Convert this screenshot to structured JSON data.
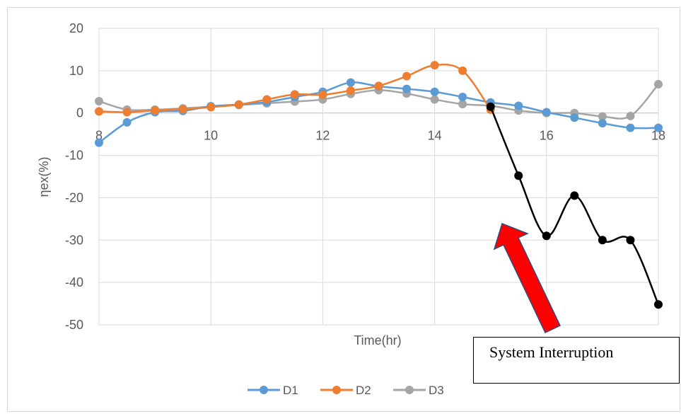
{
  "chart_data": {
    "type": "line",
    "title": "",
    "xlabel": "Time(hr)",
    "ylabel": "ηex(%)",
    "xlim": [
      8,
      18
    ],
    "ylim": [
      -50,
      20
    ],
    "x_ticks": [
      8,
      10,
      12,
      14,
      16,
      18
    ],
    "y_ticks": [
      20,
      10,
      0,
      -10,
      -20,
      -30,
      -40,
      -50
    ],
    "grid": true,
    "legend": "bottom",
    "series": [
      {
        "name": "D1",
        "color": "#5b9bd5",
        "x": [
          8,
          8.5,
          9,
          9.5,
          10,
          10.5,
          11,
          11.5,
          12,
          12.5,
          13,
          13.5,
          14,
          14.5,
          15,
          15.5,
          16,
          16.5,
          17,
          17.5,
          18
        ],
        "y": [
          -7,
          -2.2,
          0.2,
          0.5,
          1.6,
          2,
          2.6,
          3.8,
          5,
          7.2,
          6.3,
          5.7,
          5,
          3.8,
          2.5,
          1.7,
          0.2,
          -1.1,
          -2.4,
          -3.5,
          -3.5
        ]
      },
      {
        "name": "D2",
        "color": "#ed7d31",
        "x": [
          8,
          8.5,
          9,
          9.5,
          10,
          10.5,
          11,
          11.5,
          12,
          12.5,
          13,
          13.5,
          14,
          14.5,
          15
        ],
        "y": [
          0.4,
          0.2,
          0.6,
          0.9,
          1.4,
          2,
          3.2,
          4.4,
          4.3,
          5.3,
          6.4,
          8.7,
          11.3,
          10,
          0.8
        ]
      },
      {
        "name": "D3",
        "color": "#a5a5a5",
        "x": [
          8,
          8.5,
          9,
          9.5,
          10,
          10.5,
          11,
          11.5,
          12,
          12.5,
          13,
          13.5,
          14,
          14.5,
          15,
          15.5,
          16,
          16.5,
          17,
          17.5,
          18
        ],
        "y": [
          2.8,
          0.8,
          0.8,
          1.1,
          1.5,
          1.9,
          2.3,
          2.7,
          3.2,
          4.5,
          5.4,
          4.6,
          3.2,
          2.1,
          1.7,
          0.6,
          0,
          0,
          -0.8,
          -0.7,
          6.8
        ]
      },
      {
        "name": "",
        "color": "#000000",
        "x": [
          15,
          15.5,
          16,
          16.5,
          17,
          17.5,
          18
        ],
        "y": [
          1.5,
          -14.8,
          -29,
          -19.5,
          -30,
          -30,
          -45.2
        ]
      }
    ],
    "annotations": [
      {
        "text": "System Interruption"
      }
    ]
  }
}
